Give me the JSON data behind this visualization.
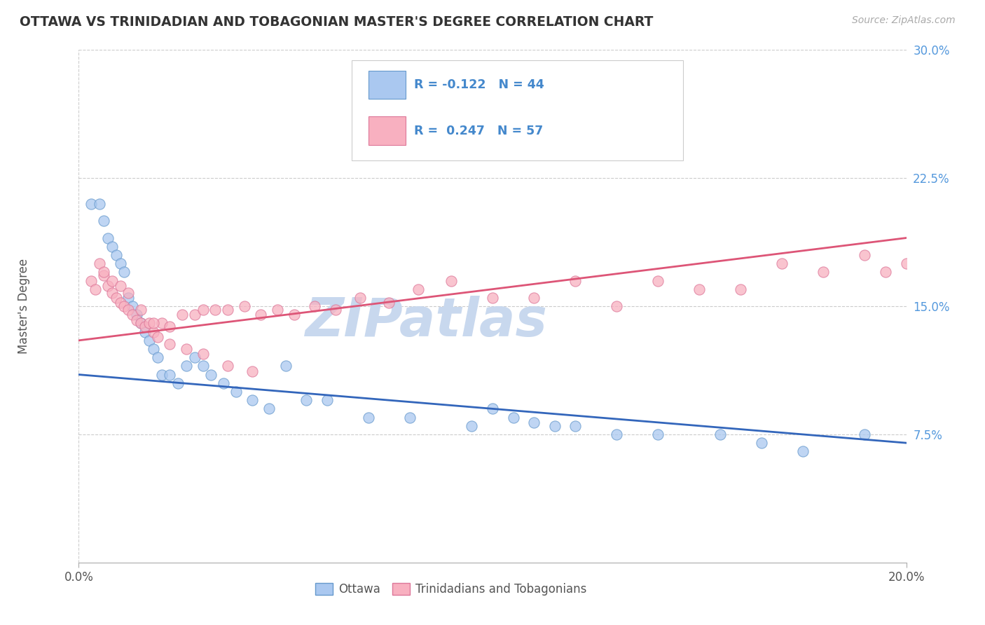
{
  "title": "OTTAWA VS TRINIDADIAN AND TOBAGONIAN MASTER'S DEGREE CORRELATION CHART",
  "source_text": "Source: ZipAtlas.com",
  "ylabel": "Master's Degree",
  "xlim": [
    0.0,
    0.2
  ],
  "ylim": [
    0.0,
    0.3
  ],
  "xtick_vals": [
    0.0,
    0.2
  ],
  "xtick_labels": [
    "0.0%",
    "20.0%"
  ],
  "ytick_vals": [
    0.075,
    0.15,
    0.225,
    0.3
  ],
  "ytick_labels": [
    "7.5%",
    "15.0%",
    "22.5%",
    "30.0%"
  ],
  "ottawa_color": "#aac8f0",
  "ottawa_edge": "#6699cc",
  "trinidadian_color": "#f8b0c0",
  "trinidadian_edge": "#dd7799",
  "trend_blue": "#3366bb",
  "trend_pink": "#dd5577",
  "watermark": "ZIPatlas",
  "watermark_color": "#c8d8ee",
  "ottawa_x": [
    0.003,
    0.005,
    0.006,
    0.007,
    0.008,
    0.009,
    0.01,
    0.011,
    0.012,
    0.013,
    0.014,
    0.015,
    0.016,
    0.017,
    0.018,
    0.019,
    0.02,
    0.022,
    0.024,
    0.026,
    0.028,
    0.03,
    0.032,
    0.035,
    0.038,
    0.042,
    0.046,
    0.05,
    0.055,
    0.06,
    0.07,
    0.08,
    0.095,
    0.1,
    0.105,
    0.11,
    0.115,
    0.12,
    0.13,
    0.14,
    0.155,
    0.165,
    0.175,
    0.19
  ],
  "ottawa_y": [
    0.21,
    0.21,
    0.2,
    0.19,
    0.185,
    0.18,
    0.175,
    0.17,
    0.155,
    0.15,
    0.145,
    0.14,
    0.135,
    0.13,
    0.125,
    0.12,
    0.11,
    0.11,
    0.105,
    0.115,
    0.12,
    0.115,
    0.11,
    0.105,
    0.1,
    0.095,
    0.09,
    0.115,
    0.095,
    0.095,
    0.085,
    0.085,
    0.08,
    0.09,
    0.085,
    0.082,
    0.08,
    0.08,
    0.075,
    0.075,
    0.075,
    0.07,
    0.065,
    0.075
  ],
  "trinidadian_x": [
    0.003,
    0.004,
    0.005,
    0.006,
    0.007,
    0.008,
    0.009,
    0.01,
    0.011,
    0.012,
    0.013,
    0.014,
    0.015,
    0.016,
    0.017,
    0.018,
    0.019,
    0.02,
    0.022,
    0.025,
    0.028,
    0.03,
    0.033,
    0.036,
    0.04,
    0.044,
    0.048,
    0.052,
    0.057,
    0.062,
    0.068,
    0.075,
    0.082,
    0.09,
    0.1,
    0.11,
    0.12,
    0.13,
    0.14,
    0.15,
    0.16,
    0.17,
    0.18,
    0.19,
    0.195,
    0.2,
    0.006,
    0.008,
    0.01,
    0.012,
    0.015,
    0.018,
    0.022,
    0.026,
    0.03,
    0.036,
    0.042
  ],
  "trinidadian_y": [
    0.165,
    0.16,
    0.175,
    0.168,
    0.162,
    0.158,
    0.155,
    0.152,
    0.15,
    0.148,
    0.145,
    0.142,
    0.14,
    0.138,
    0.14,
    0.135,
    0.132,
    0.14,
    0.138,
    0.145,
    0.145,
    0.148,
    0.148,
    0.148,
    0.15,
    0.145,
    0.148,
    0.145,
    0.15,
    0.148,
    0.155,
    0.152,
    0.16,
    0.165,
    0.155,
    0.155,
    0.165,
    0.15,
    0.165,
    0.16,
    0.16,
    0.175,
    0.17,
    0.18,
    0.17,
    0.175,
    0.17,
    0.165,
    0.162,
    0.158,
    0.148,
    0.14,
    0.128,
    0.125,
    0.122,
    0.115,
    0.112
  ]
}
